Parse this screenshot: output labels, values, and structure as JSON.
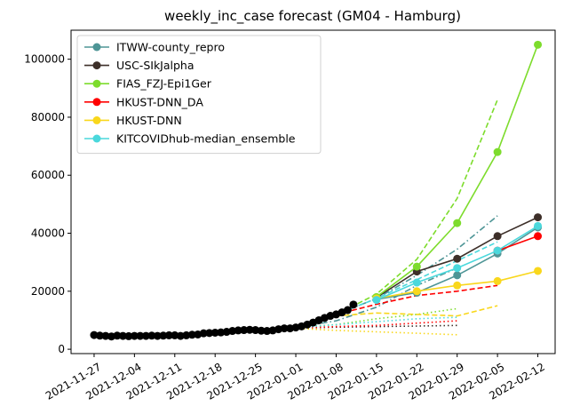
{
  "chart_data": {
    "type": "line",
    "title": "weekly_inc_case forecast (GM04 - Hamburg)",
    "xlabel": "",
    "ylabel": "",
    "x_axis": {
      "type": "date",
      "range": [
        "2021-11-23",
        "2022-02-15"
      ],
      "ticks": [
        "2021-11-27",
        "2021-12-04",
        "2021-12-11",
        "2021-12-18",
        "2021-12-25",
        "2022-01-01",
        "2022-01-08",
        "2022-01-15",
        "2022-01-22",
        "2022-01-29",
        "2022-02-05",
        "2022-02-12"
      ]
    },
    "y_axis": {
      "range": [
        -1500,
        110000
      ],
      "ticks": [
        0,
        20000,
        40000,
        60000,
        80000,
        100000
      ]
    },
    "grid": false,
    "legend_position": "upper-left",
    "truth": {
      "color": "#000000",
      "x": [
        "2021-11-27",
        "2021-11-28",
        "2021-11-29",
        "2021-11-30",
        "2021-12-01",
        "2021-12-02",
        "2021-12-03",
        "2021-12-04",
        "2021-12-05",
        "2021-12-06",
        "2021-12-07",
        "2021-12-08",
        "2021-12-09",
        "2021-12-10",
        "2021-12-11",
        "2021-12-12",
        "2021-12-13",
        "2021-12-14",
        "2021-12-15",
        "2021-12-16",
        "2021-12-17",
        "2021-12-18",
        "2021-12-19",
        "2021-12-20",
        "2021-12-21",
        "2021-12-22",
        "2021-12-23",
        "2021-12-24",
        "2021-12-25",
        "2021-12-26",
        "2021-12-27",
        "2021-12-28",
        "2021-12-29",
        "2021-12-30",
        "2021-12-31",
        "2022-01-01",
        "2022-01-02",
        "2022-01-03",
        "2022-01-04",
        "2022-01-05",
        "2022-01-06",
        "2022-01-07",
        "2022-01-08",
        "2022-01-09",
        "2022-01-10",
        "2022-01-11"
      ],
      "y": [
        4900,
        4700,
        4600,
        4400,
        4700,
        4600,
        4500,
        4600,
        4600,
        4600,
        4700,
        4600,
        4700,
        4800,
        4800,
        4600,
        4800,
        5000,
        5100,
        5500,
        5600,
        5700,
        5800,
        6000,
        6300,
        6500,
        6600,
        6700,
        6600,
        6400,
        6300,
        6500,
        6900,
        7200,
        7200,
        7500,
        7900,
        8500,
        9200,
        10000,
        10800,
        11500,
        12000,
        12700,
        13500,
        15400
      ]
    },
    "series": [
      {
        "name": "ITWW-county_repro",
        "color": "#4e9596",
        "x": [
          "2022-01-15",
          "2022-01-22",
          "2022-01-29",
          "2022-02-05",
          "2022-02-12"
        ],
        "y": [
          17200,
          19500,
          25500,
          33000,
          42000
        ],
        "forecasts": [
          {
            "style": "dashdot",
            "x": [
              "2022-01-01",
              "2022-01-08",
              "2022-01-15",
              "2022-01-22",
              "2022-01-29"
            ],
            "y": [
              7500,
              9800,
              14500,
              22000,
              28000
            ]
          },
          {
            "style": "dashdot",
            "x": [
              "2022-01-08",
              "2022-01-15",
              "2022-01-22",
              "2022-01-29",
              "2022-02-05"
            ],
            "y": [
              12000,
              17500,
              25500,
              34500,
              46000
            ]
          }
        ]
      },
      {
        "name": "USC-SIkJalpha",
        "color": "#3d2f29",
        "x": [
          "2022-01-15",
          "2022-01-22",
          "2022-01-29",
          "2022-02-05",
          "2022-02-12"
        ],
        "y": [
          17800,
          26800,
          31200,
          39000,
          45500
        ],
        "forecasts": [
          {
            "style": "dotted",
            "x": [
              "2022-01-01",
              "2022-01-08",
              "2022-01-15",
              "2022-01-22",
              "2022-01-29"
            ],
            "y": [
              7300,
              7600,
              7800,
              8000,
              8200
            ]
          }
        ]
      },
      {
        "name": "FIAS_FZJ-Epi1Ger",
        "color": "#7ddc2c",
        "x": [
          "2022-01-15",
          "2022-01-22",
          "2022-01-29",
          "2022-02-05",
          "2022-02-12"
        ],
        "y": [
          18000,
          28500,
          43500,
          68000,
          105000
        ],
        "forecasts": [
          {
            "style": "dashed",
            "x": [
              "2022-01-08",
              "2022-01-15",
              "2022-01-22",
              "2022-01-29",
              "2022-02-05"
            ],
            "y": [
              12000,
              19000,
              31000,
              52000,
              86000
            ]
          },
          {
            "style": "dotted",
            "x": [
              "2022-01-01",
              "2022-01-08",
              "2022-01-15",
              "2022-01-22",
              "2022-01-29"
            ],
            "y": [
              7500,
              8500,
              10500,
              12000,
              14000
            ]
          }
        ]
      },
      {
        "name": "HKUST-DNN_DA",
        "color": "#ff0000",
        "x": [
          "2022-02-05",
          "2022-02-12"
        ],
        "y": [
          34000,
          39000
        ],
        "forecasts": [
          {
            "style": "dashed",
            "x": [
              "2022-01-08",
              "2022-01-15",
              "2022-01-22",
              "2022-01-29",
              "2022-02-05"
            ],
            "y": [
              12000,
              15500,
              18500,
              20000,
              22000
            ]
          },
          {
            "style": "dotted",
            "x": [
              "2022-01-01",
              "2022-01-08",
              "2022-01-15",
              "2022-01-22",
              "2022-01-29"
            ],
            "y": [
              7200,
              7800,
              8200,
              9000,
              9800
            ]
          }
        ]
      },
      {
        "name": "HKUST-DNN",
        "color": "#f9d71c",
        "x": [
          "2022-01-15",
          "2022-01-22",
          "2022-01-29",
          "2022-02-05",
          "2022-02-12"
        ],
        "y": [
          17500,
          20000,
          22000,
          23500,
          27000
        ],
        "forecasts": [
          {
            "style": "dashed",
            "x": [
              "2022-01-08",
              "2022-01-15",
              "2022-01-22",
              "2022-01-29",
              "2022-02-05"
            ],
            "y": [
              11500,
              12500,
              12000,
              11500,
              15000
            ]
          },
          {
            "style": "dotted",
            "x": [
              "2022-01-01",
              "2022-01-08",
              "2022-01-15",
              "2022-01-22",
              "2022-01-29"
            ],
            "y": [
              7200,
              6500,
              6000,
              5500,
              5000
            ]
          }
        ]
      },
      {
        "name": "KITCOVIDhub-median_ensemble",
        "color": "#4ad8dc",
        "x": [
          "2022-01-15",
          "2022-01-22",
          "2022-01-29",
          "2022-02-05",
          "2022-02-12"
        ],
        "y": [
          17000,
          23000,
          28000,
          34000,
          42500
        ],
        "forecasts": [
          {
            "style": "dashed",
            "x": [
              "2022-01-08",
              "2022-01-15",
              "2022-01-22",
              "2022-01-29",
              "2022-02-05"
            ],
            "y": [
              12000,
              17500,
              24000,
              30500,
              37000
            ]
          },
          {
            "style": "dotted",
            "x": [
              "2022-01-01",
              "2022-01-08",
              "2022-01-15",
              "2022-01-22",
              "2022-01-29"
            ],
            "y": [
              7400,
              8500,
              9500,
              10500,
              11000
            ]
          }
        ]
      }
    ]
  }
}
